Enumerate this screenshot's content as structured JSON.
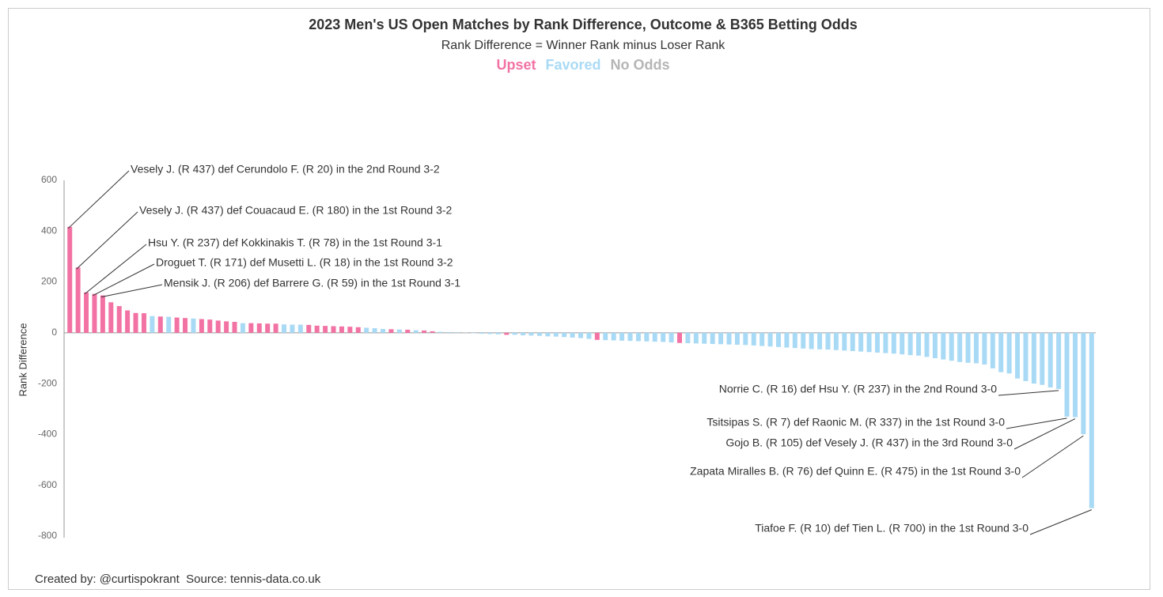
{
  "chart_data": {
    "type": "bar",
    "title": "2023 Men's US Open Matches by Rank Difference, Outcome & B365 Betting Odds",
    "subtitle": "Rank Difference = Winner Rank minus Loser Rank",
    "y_label": "Rank Difference",
    "footer": "Created by: @curtispokrant  Source: tennis-data.co.uk",
    "legend": [
      {
        "name": "Upset",
        "color": "#f272a4"
      },
      {
        "name": "Favored",
        "color": "#a9daf5"
      },
      {
        "name": "No Odds",
        "color": "#b5b5b5"
      }
    ],
    "ylim": [
      -800,
      600
    ],
    "yticks": [
      -800,
      -600,
      -400,
      -200,
      0,
      200,
      400,
      600
    ],
    "values": [
      417,
      257,
      159,
      153,
      147,
      120,
      105,
      88,
      78,
      77,
      66,
      64,
      63,
      60,
      58,
      56,
      54,
      52,
      48,
      45,
      43,
      38,
      38,
      37,
      36,
      36,
      33,
      32,
      32,
      31,
      28,
      27,
      26,
      25,
      24,
      22,
      20,
      18,
      15,
      14,
      13,
      12,
      10,
      9,
      6,
      4,
      3,
      2,
      1,
      -2,
      -4,
      -5,
      -6,
      -8,
      -8,
      -10,
      -11,
      -12,
      -14,
      -15,
      -17,
      -19,
      -21,
      -24,
      -28,
      -29,
      -30,
      -31,
      -32,
      -33,
      -34,
      -35,
      -36,
      -38,
      -40,
      -41,
      -42,
      -43,
      -44,
      -45,
      -46,
      -47,
      -48,
      -50,
      -52,
      -54,
      -56,
      -58,
      -60,
      -62,
      -64,
      -65,
      -66,
      -68,
      -70,
      -72,
      -74,
      -76,
      -78,
      -80,
      -82,
      -85,
      -88,
      -90,
      -95,
      -100,
      -105,
      -110,
      -115,
      -118,
      -120,
      -125,
      -140,
      -155,
      -160,
      -180,
      -190,
      -200,
      -205,
      -215,
      -221,
      -330,
      -332,
      -399,
      -690
    ],
    "outcomes": [
      "Upset",
      "Upset",
      "Upset",
      "Upset",
      "Upset",
      "Upset",
      "Upset",
      "Upset",
      "Upset",
      "Upset",
      "Favored",
      "Upset",
      "Favored",
      "Upset",
      "Upset",
      "Favored",
      "Upset",
      "Upset",
      "Upset",
      "Upset",
      "Upset",
      "Favored",
      "Upset",
      "Upset",
      "Upset",
      "Upset",
      "Favored",
      "Favored",
      "Favored",
      "Upset",
      "Upset",
      "Upset",
      "Upset",
      "Upset",
      "Upset",
      "Upset",
      "Favored",
      "Favored",
      "Favored",
      "Upset",
      "Favored",
      "Upset",
      "Favored",
      "Upset",
      "Upset",
      "Favored",
      "Favored",
      "Favored",
      "Favored",
      "Favored",
      "Favored",
      "Favored",
      "Favored",
      "Upset",
      "Favored",
      "Favored",
      "Favored",
      "Favored",
      "Favored",
      "Favored",
      "Favored",
      "Favored",
      "Favored",
      "Favored",
      "Upset",
      "Favored",
      "Favored",
      "Favored",
      "Favored",
      "Favored",
      "Favored",
      "Favored",
      "Favored",
      "Favored",
      "Upset",
      "Favored",
      "Favored",
      "Favored",
      "Favored",
      "Favored",
      "Favored",
      "Favored",
      "Favored",
      "Favored",
      "Favored",
      "Favored",
      "Favored",
      "Favored",
      "Favored",
      "Favored",
      "Favored",
      "Favored",
      "Favored",
      "Favored",
      "Favored",
      "Favored",
      "Favored",
      "Favored",
      "Favored",
      "Favored",
      "Favored",
      "Favored",
      "Favored",
      "Favored",
      "Favored",
      "Favored",
      "Favored",
      "Favored",
      "Favored",
      "Favored",
      "Favored",
      "Favored",
      "Favored",
      "Favored",
      "Favored",
      "Favored",
      "Favored",
      "Favored",
      "Favored",
      "Favored",
      "Favored",
      "Favored",
      "Favored",
      "Favored",
      "Favored"
    ],
    "annotations": [
      "Vesely J. (R 437) def Cerundolo F. (R 20) in the 2nd Round 3-2",
      "Vesely J. (R 437) def Couacaud E. (R 180) in the 1st Round 3-2",
      "Hsu Y. (R 237) def Kokkinakis T. (R 78) in the 1st Round 3-1",
      "Droguet T. (R 171) def Musetti L. (R 18) in the 1st Round 3-2",
      "Mensik J. (R 206) def Barrere G. (R 59) in the 1st Round 3-1",
      "Norrie C. (R 16) def Hsu Y. (R 237) in the 2nd Round 3-0",
      "Tsitsipas S. (R 7) def Raonic M. (R 337) in the 1st Round 3-0",
      "Gojo B. (R 105) def Vesely J. (R 437) in the 3rd Round 3-0",
      "Zapata Miralles B. (R 76) def Quinn E. (R 475) in the 1st Round 3-0",
      "Tiafoe F. (R 10) def Tien L. (R 700) in the 1st Round 3-0"
    ]
  }
}
